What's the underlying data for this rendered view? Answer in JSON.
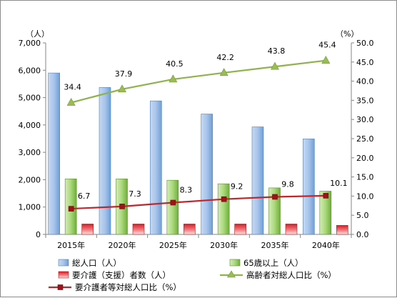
{
  "chart_data": {
    "type": "bar+line",
    "categories": [
      "2015年",
      "2020年",
      "2025年",
      "2030年",
      "2035年",
      "2040年"
    ],
    "left_axis": {
      "unit": "（人）",
      "ylim": [
        0,
        7000
      ],
      "ticks": [
        "0",
        "1,000",
        "2,000",
        "3,000",
        "4,000",
        "5,000",
        "6,000",
        "7,000"
      ],
      "tick_values": [
        0,
        1000,
        2000,
        3000,
        4000,
        5000,
        6000,
        7000
      ]
    },
    "right_axis": {
      "unit": "（%）",
      "ylim": [
        0,
        50
      ],
      "ticks": [
        "0.0",
        "5.0",
        "10.0",
        "15.0",
        "20.0",
        "25.0",
        "30.0",
        "35.0",
        "40.0",
        "45.0",
        "50.0"
      ],
      "tick_values": [
        0,
        5,
        10,
        15,
        20,
        25,
        30,
        35,
        40,
        45,
        50
      ]
    },
    "bar_series": [
      {
        "name": "総人口（人）",
        "values": [
          5900,
          5370,
          4880,
          4400,
          3930,
          3490
        ],
        "color": "#8db4e2"
      },
      {
        "name": "65歳以上（人）",
        "values": [
          2030,
          2030,
          1980,
          1850,
          1700,
          1580
        ],
        "color": "#9bd16a"
      },
      {
        "name": "要介護（支援）者数（人）",
        "values": [
          380,
          380,
          380,
          380,
          380,
          330
        ],
        "color": "#e8444b"
      }
    ],
    "line_series": [
      {
        "name": "高齢者対総人口比（%）",
        "values": [
          34.4,
          37.9,
          40.5,
          42.2,
          43.8,
          45.4
        ],
        "labels": [
          "34.4",
          "37.9",
          "40.5",
          "42.2",
          "43.8",
          "45.4"
        ],
        "color": "#8db34a",
        "marker": "triangle"
      },
      {
        "name": "要介護者等対総人口比（%）",
        "values": [
          6.7,
          7.3,
          8.3,
          9.2,
          9.8,
          10.1
        ],
        "labels": [
          "6.7",
          "7.3",
          "8.3",
          "9.2",
          "9.8",
          "10.1"
        ],
        "color": "#c0262c",
        "marker": "square"
      }
    ],
    "grid": false,
    "legend_position": "bottom"
  }
}
